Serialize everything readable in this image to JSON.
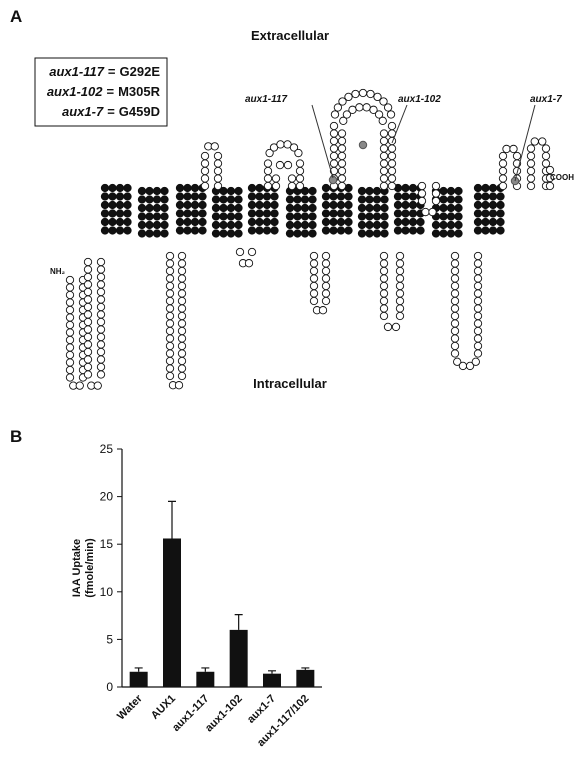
{
  "panel_a": {
    "label": "A",
    "extracellular": "Extracellular",
    "intracellular": "Intracellular",
    "mutations": [
      {
        "allele": "aux1-117",
        "separator": "=",
        "change": "G292E"
      },
      {
        "allele": "aux1-102",
        "separator": "=",
        "change": "M305R"
      },
      {
        "allele": "aux1-7",
        "separator": "=",
        "change": "G459D"
      }
    ],
    "callouts": [
      "aux1-117",
      "aux1-102",
      "aux1-7"
    ],
    "n_terminus": "NH₂",
    "c_terminus": "COOH"
  },
  "panel_b": {
    "label": "B"
  },
  "chart_data": {
    "type": "bar",
    "ylabel": [
      "IAA Uptake",
      "(fmole/min)"
    ],
    "categories": [
      "Water",
      "AUX1",
      "aux1-117",
      "aux1-102",
      "aux1-7",
      "aux1-117/102"
    ],
    "values": [
      1.6,
      15.6,
      1.6,
      6.0,
      1.4,
      1.8
    ],
    "errors": [
      0.4,
      3.9,
      0.4,
      1.6,
      0.3,
      0.2
    ],
    "color": "#111111",
    "ylim": [
      0,
      25
    ],
    "yticks": [
      0,
      5,
      10,
      15,
      20,
      25
    ]
  }
}
